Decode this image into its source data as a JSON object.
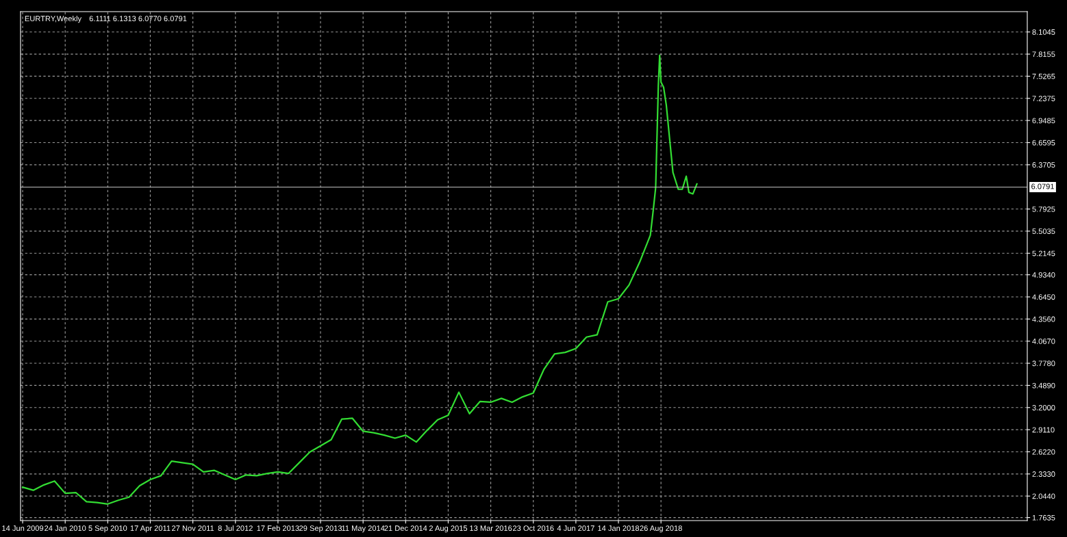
{
  "chart_data": {
    "type": "line",
    "title": "EURTRY,Weekly",
    "subtitle": "6.1111 6.1313 6.0770 6.0791",
    "x": [
      "2009-06-14",
      "2009-08-09",
      "2009-10-04",
      "2009-11-29",
      "2010-01-24",
      "2010-03-21",
      "2010-05-16",
      "2010-07-11",
      "2010-09-05",
      "2010-10-31",
      "2010-12-26",
      "2011-02-20",
      "2011-04-17",
      "2011-06-12",
      "2011-08-07",
      "2011-10-02",
      "2011-11-27",
      "2012-01-22",
      "2012-03-18",
      "2012-05-13",
      "2012-07-08",
      "2012-09-02",
      "2012-10-28",
      "2012-12-23",
      "2013-02-17",
      "2013-04-14",
      "2013-06-09",
      "2013-08-04",
      "2013-09-29",
      "2013-11-24",
      "2014-01-19",
      "2014-03-16",
      "2014-05-11",
      "2014-07-06",
      "2014-08-31",
      "2014-10-26",
      "2014-12-21",
      "2015-02-15",
      "2015-04-12",
      "2015-06-07",
      "2015-08-02",
      "2015-09-27",
      "2015-11-22",
      "2016-01-17",
      "2016-03-13",
      "2016-05-08",
      "2016-07-03",
      "2016-08-28",
      "2016-10-23",
      "2016-12-18",
      "2017-02-12",
      "2017-04-09",
      "2017-06-04",
      "2017-07-30",
      "2017-09-24",
      "2017-11-19",
      "2018-01-14",
      "2018-03-11",
      "2018-05-06",
      "2018-07-01",
      "2018-07-15",
      "2018-07-29",
      "2018-08-12",
      "2018-08-19",
      "2018-08-26",
      "2018-09-09",
      "2018-09-23",
      "2018-10-14",
      "2018-10-28",
      "2018-11-25",
      "2018-12-16",
      "2019-01-06",
      "2019-01-20",
      "2019-02-10",
      "2019-03-03"
    ],
    "series": [
      {
        "color": "#33dd33",
        "values": [
          2.16,
          2.12,
          2.19,
          2.24,
          2.08,
          2.09,
          1.97,
          1.96,
          1.94,
          1.99,
          2.03,
          2.18,
          2.26,
          2.31,
          2.5,
          2.48,
          2.46,
          2.36,
          2.38,
          2.32,
          2.26,
          2.32,
          2.31,
          2.34,
          2.36,
          2.34,
          2.48,
          2.62,
          2.7,
          2.78,
          3.05,
          3.06,
          2.89,
          2.87,
          2.84,
          2.8,
          2.84,
          2.75,
          2.9,
          3.04,
          3.1,
          3.4,
          3.12,
          3.28,
          3.27,
          3.32,
          3.27,
          3.34,
          3.39,
          3.7,
          3.9,
          3.92,
          3.97,
          4.12,
          4.15,
          4.58,
          4.62,
          4.8,
          5.1,
          5.45,
          5.75,
          6.07,
          7.4,
          7.8,
          7.45,
          7.38,
          7.15,
          6.62,
          6.27,
          6.05,
          6.05,
          6.22,
          6.01,
          5.99,
          6.12
        ]
      }
    ],
    "xlim": [
      "2009-06-03",
      "2023-12-06"
    ],
    "xticks": [
      {
        "value": "2009-06-14",
        "label": "14 Jun 2009"
      },
      {
        "value": "2010-01-24",
        "label": "24 Jan 2010"
      },
      {
        "value": "2010-09-05",
        "label": "5 Sep 2010"
      },
      {
        "value": "2011-04-17",
        "label": "17 Apr 2011"
      },
      {
        "value": "2011-11-27",
        "label": "27 Nov 2011"
      },
      {
        "value": "2012-07-08",
        "label": "8 Jul 2012"
      },
      {
        "value": "2013-02-17",
        "label": "17 Feb 2013"
      },
      {
        "value": "2013-09-29",
        "label": "29 Sep 2013"
      },
      {
        "value": "2014-05-11",
        "label": "11 May 2014"
      },
      {
        "value": "2014-12-21",
        "label": "21 Dec 2014"
      },
      {
        "value": "2015-08-02",
        "label": "2 Aug 2015"
      },
      {
        "value": "2016-03-13",
        "label": "13 Mar 2016"
      },
      {
        "value": "2016-10-23",
        "label": "23 Oct 2016"
      },
      {
        "value": "2017-06-04",
        "label": "4 Jun 2017"
      },
      {
        "value": "2018-01-14",
        "label": "14 Jan 2018"
      },
      {
        "value": "2018-08-26",
        "label": "26 Aug 2018"
      }
    ],
    "ylim": [
      1.724,
      8.37
    ],
    "yticks": [
      {
        "value": 1.7635,
        "label": "1.7635"
      },
      {
        "value": 2.044,
        "label": "2.0440"
      },
      {
        "value": 2.333,
        "label": "2.3330"
      },
      {
        "value": 2.622,
        "label": "2.6220"
      },
      {
        "value": 2.911,
        "label": "2.9110"
      },
      {
        "value": 3.2,
        "label": "3.2000"
      },
      {
        "value": 3.489,
        "label": "3.4890"
      },
      {
        "value": 3.778,
        "label": "3.7780"
      },
      {
        "value": 4.067,
        "label": "4.0670"
      },
      {
        "value": 4.356,
        "label": "4.3560"
      },
      {
        "value": 4.645,
        "label": "4.6450"
      },
      {
        "value": 4.934,
        "label": "4.9340"
      },
      {
        "value": 5.2145,
        "label": "5.2145"
      },
      {
        "value": 5.5035,
        "label": "5.5035"
      },
      {
        "value": 5.7925,
        "label": "5.7925"
      },
      {
        "value": 6.3705,
        "label": "6.3705"
      },
      {
        "value": 6.6595,
        "label": "6.6595"
      },
      {
        "value": 6.9485,
        "label": "6.9485"
      },
      {
        "value": 7.2375,
        "label": "7.2375"
      },
      {
        "value": 7.5265,
        "label": "7.5265"
      },
      {
        "value": 7.8155,
        "label": "7.8155"
      },
      {
        "value": 8.1045,
        "label": "8.1045"
      }
    ],
    "ref_lines": [
      {
        "axis": "y",
        "value": 6.0791,
        "label": "6.0791",
        "color": "#c0c0c0",
        "line_style": "solid"
      }
    ],
    "grid": true,
    "marker": "none",
    "line_style": "solid"
  }
}
